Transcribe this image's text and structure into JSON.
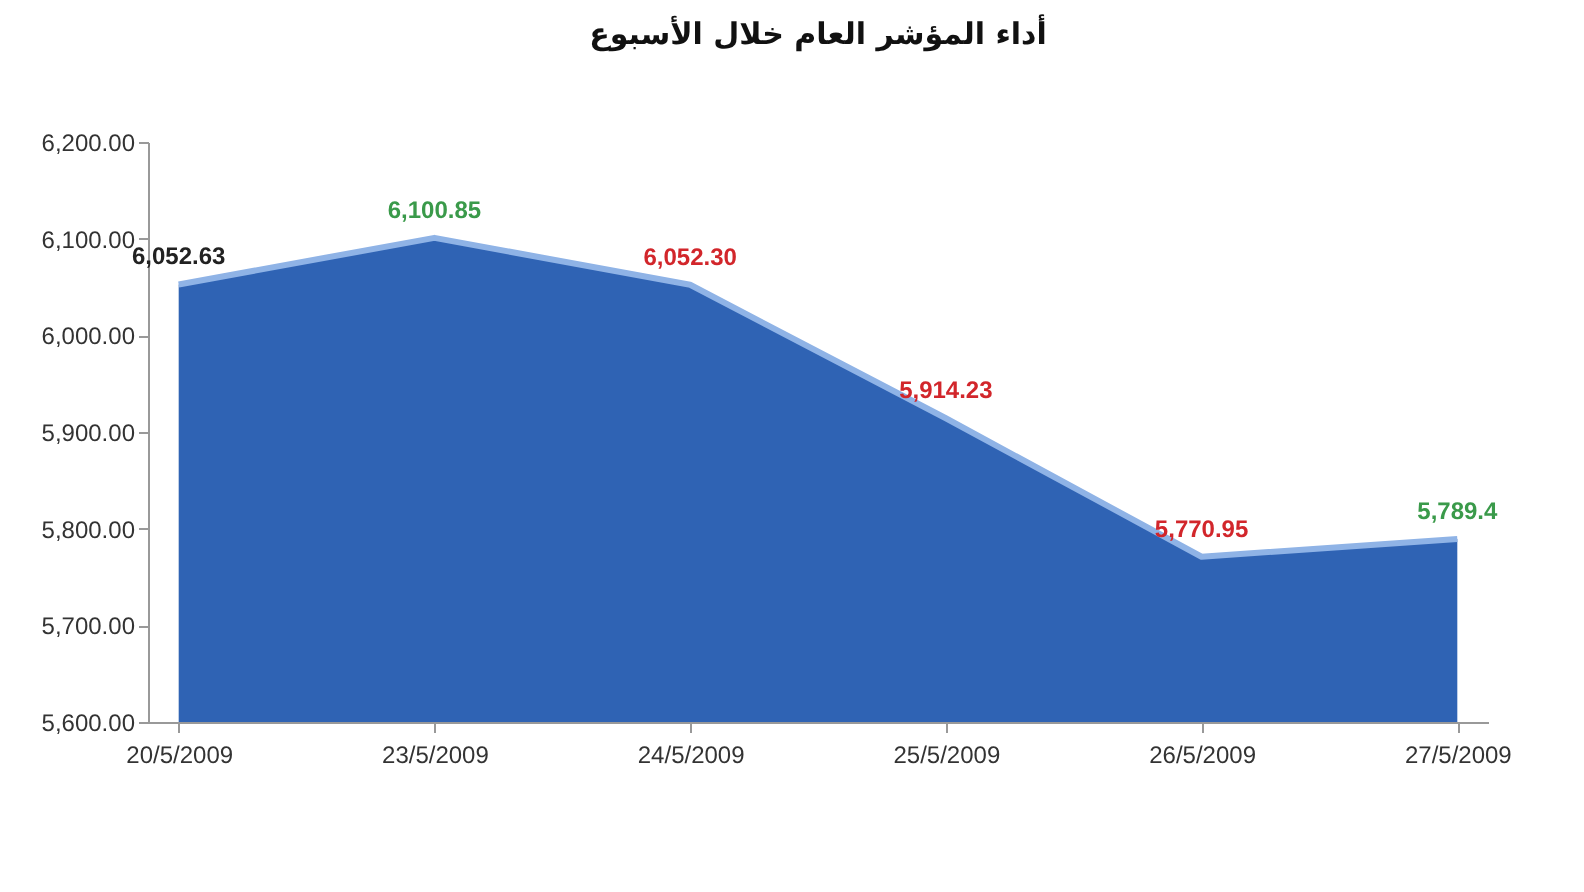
{
  "chart_data": {
    "type": "area",
    "title": "أداء المؤشر العام خلال الأسبوع",
    "categories": [
      "20/5/2009",
      "23/5/2009",
      "24/5/2009",
      "25/5/2009",
      "26/5/2009",
      "27/5/2009"
    ],
    "series": [
      {
        "color": "#2f63b4",
        "values": [
          6052.63,
          6100.85,
          6052.3,
          5914.23,
          5770.95,
          5789.4
        ],
        "value_labels": [
          "6,052.63",
          "6,100.85",
          "6,052.30",
          "5,914.23",
          "5,770.95",
          "5,789.4"
        ]
      }
    ],
    "ylim": [
      5600,
      6200
    ],
    "yticks": [
      {
        "value": 5600,
        "label": "5,600.00"
      },
      {
        "value": 5700,
        "label": "5,700.00"
      },
      {
        "value": 5800,
        "label": "5,800.00"
      },
      {
        "value": 5900,
        "label": "5,900.00"
      },
      {
        "value": 6000,
        "label": "6,000.00"
      },
      {
        "value": 6100,
        "label": "6,100.00"
      },
      {
        "value": 6200,
        "label": "6,200.00"
      }
    ],
    "grid": false
  }
}
